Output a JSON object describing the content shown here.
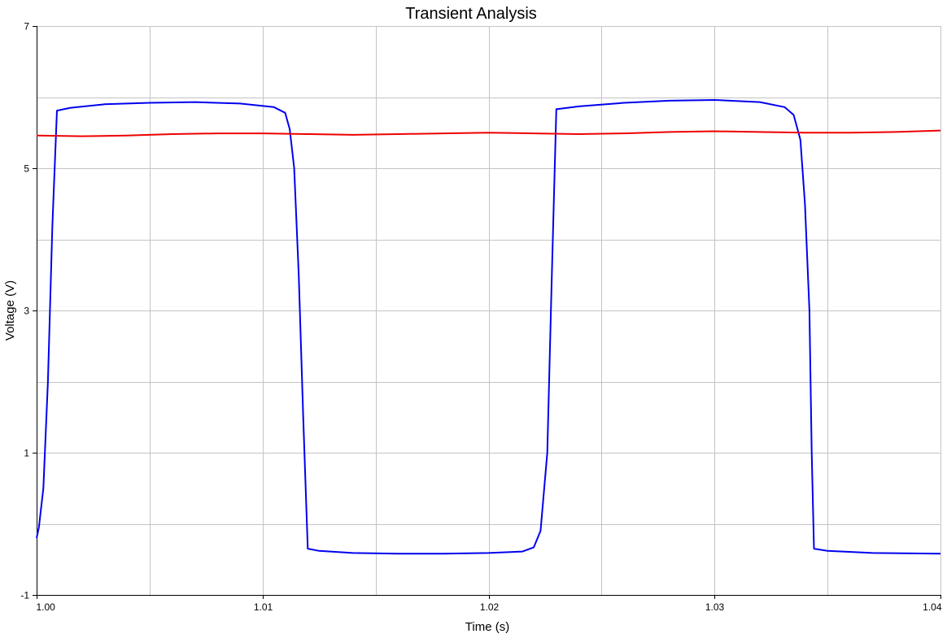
{
  "chart_data": {
    "type": "line",
    "title": "Transient Analysis",
    "xlabel": "Time (s)",
    "ylabel": "Voltage (V)",
    "xlim": [
      1.0,
      1.04
    ],
    "ylim": [
      -1,
      7
    ],
    "x_ticks": [
      {
        "value": 1.0,
        "label": "1.00"
      },
      {
        "value": 1.01,
        "label": "1.01"
      },
      {
        "value": 1.02,
        "label": "1.02"
      },
      {
        "value": 1.03,
        "label": "1.03"
      },
      {
        "value": 1.04,
        "label": "1.04"
      }
    ],
    "x_minor_grid": [
      1.005,
      1.015,
      1.025,
      1.035
    ],
    "y_ticks": [
      {
        "value": -1,
        "label": "-1"
      },
      {
        "value": 1,
        "label": "1"
      },
      {
        "value": 3,
        "label": "3"
      },
      {
        "value": 5,
        "label": "5"
      },
      {
        "value": 7,
        "label": "7"
      }
    ],
    "y_minor_grid": [
      0,
      2,
      4,
      6
    ],
    "grid": true,
    "series": [
      {
        "color": "#0000ee",
        "points": [
          [
            1.0,
            -0.2
          ],
          [
            1.0001,
            -0.05
          ],
          [
            1.0003,
            0.5
          ],
          [
            1.0005,
            2.0
          ],
          [
            1.0007,
            4.2
          ],
          [
            1.0009,
            5.81
          ],
          [
            1.0015,
            5.85
          ],
          [
            1.003,
            5.9
          ],
          [
            1.005,
            5.92
          ],
          [
            1.007,
            5.93
          ],
          [
            1.009,
            5.91
          ],
          [
            1.0105,
            5.86
          ],
          [
            1.011,
            5.78
          ],
          [
            1.0112,
            5.55
          ],
          [
            1.0114,
            5.0
          ],
          [
            1.0116,
            3.5
          ],
          [
            1.0118,
            1.5
          ],
          [
            1.012,
            -0.35
          ],
          [
            1.0125,
            -0.38
          ],
          [
            1.014,
            -0.41
          ],
          [
            1.016,
            -0.42
          ],
          [
            1.018,
            -0.42
          ],
          [
            1.02,
            -0.41
          ],
          [
            1.0215,
            -0.39
          ],
          [
            1.022,
            -0.33
          ],
          [
            1.0223,
            -0.1
          ],
          [
            1.0226,
            1.0
          ],
          [
            1.0228,
            3.5
          ],
          [
            1.023,
            5.83
          ],
          [
            1.024,
            5.87
          ],
          [
            1.026,
            5.92
          ],
          [
            1.028,
            5.95
          ],
          [
            1.03,
            5.96
          ],
          [
            1.032,
            5.93
          ],
          [
            1.0331,
            5.86
          ],
          [
            1.0335,
            5.75
          ],
          [
            1.0338,
            5.4
          ],
          [
            1.034,
            4.5
          ],
          [
            1.0342,
            3.0
          ],
          [
            1.0343,
            1.0
          ],
          [
            1.0344,
            -0.35
          ],
          [
            1.035,
            -0.38
          ],
          [
            1.037,
            -0.41
          ],
          [
            1.04,
            -0.42
          ]
        ]
      },
      {
        "color": "#ee0000",
        "points": [
          [
            1.0,
            5.46
          ],
          [
            1.002,
            5.45
          ],
          [
            1.004,
            5.46
          ],
          [
            1.006,
            5.48
          ],
          [
            1.008,
            5.49
          ],
          [
            1.01,
            5.49
          ],
          [
            1.012,
            5.48
          ],
          [
            1.014,
            5.47
          ],
          [
            1.016,
            5.48
          ],
          [
            1.018,
            5.49
          ],
          [
            1.02,
            5.5
          ],
          [
            1.022,
            5.49
          ],
          [
            1.024,
            5.48
          ],
          [
            1.026,
            5.49
          ],
          [
            1.028,
            5.51
          ],
          [
            1.03,
            5.52
          ],
          [
            1.032,
            5.51
          ],
          [
            1.034,
            5.5
          ],
          [
            1.036,
            5.5
          ],
          [
            1.038,
            5.51
          ],
          [
            1.04,
            5.53
          ]
        ]
      }
    ]
  }
}
